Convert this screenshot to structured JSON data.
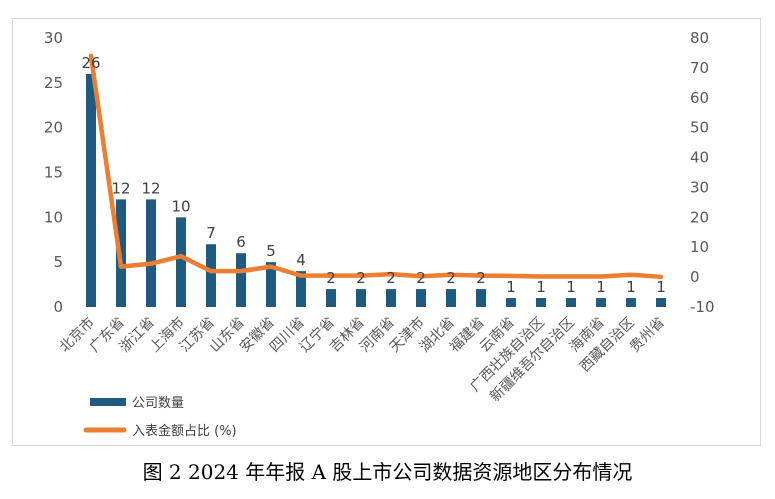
{
  "caption": "图 2  2024 年年报 A 股上市公司数据资源地区分布情况",
  "chart_data": {
    "type": "bar",
    "categories": [
      "北京市",
      "广东省",
      "浙江省",
      "上海市",
      "江苏省",
      "山东省",
      "安徽省",
      "四川省",
      "辽宁省",
      "吉林省",
      "河南省",
      "天津市",
      "湖北省",
      "福建省",
      "云南省",
      "广西壮族自治区",
      "新疆维吾尔自治区",
      "海南省",
      "西藏自治区",
      "贵州省"
    ],
    "series": [
      {
        "name": "公司数量",
        "type": "bar",
        "axis": "left",
        "color": "#1f5b7e",
        "values": [
          26,
          12,
          12,
          10,
          7,
          6,
          5,
          4,
          2,
          2,
          2,
          2,
          2,
          2,
          1,
          1,
          1,
          1,
          1,
          1
        ],
        "data_labels": [
          "26",
          "12",
          "12",
          "10",
          "7",
          "6",
          "5",
          "4",
          "2",
          "2",
          "2",
          "2",
          "2",
          "2",
          "1",
          "1",
          "1",
          "1",
          "1",
          "1"
        ]
      },
      {
        "name": "入表金额占比 (%)",
        "type": "line",
        "axis": "right",
        "color": "#ed7d31",
        "values": [
          74,
          3.5,
          4.5,
          7,
          2,
          2,
          3.5,
          0.5,
          0.5,
          0.5,
          1,
          0.3,
          0.8,
          0.5,
          0.4,
          0.2,
          0.2,
          0.2,
          0.8,
          0.1
        ]
      }
    ],
    "y_left": {
      "min": 0,
      "max": 30,
      "ticks": [
        "0",
        "5",
        "10",
        "15",
        "20",
        "25",
        "30"
      ]
    },
    "y_right": {
      "min": -10,
      "max": 80,
      "ticks": [
        "-10",
        "0",
        "10",
        "20",
        "30",
        "40",
        "50",
        "60",
        "70",
        "80"
      ]
    },
    "grid": false,
    "legend": "bottom-left"
  }
}
